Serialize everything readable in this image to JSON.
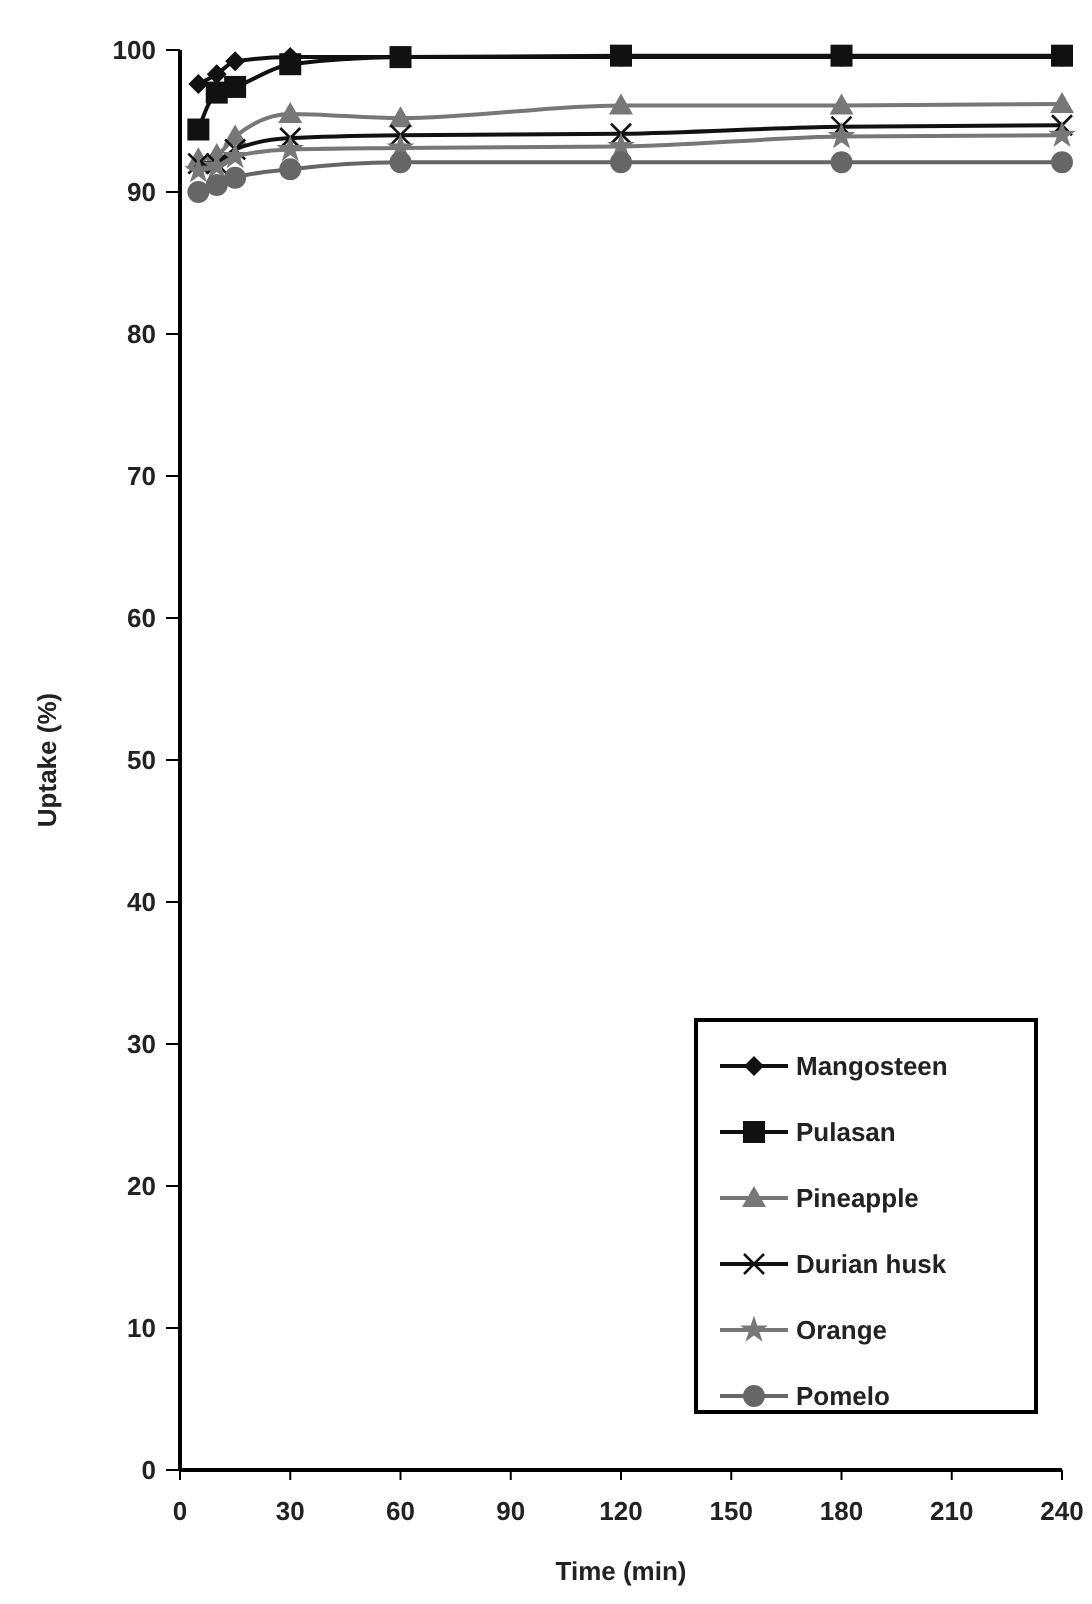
{
  "chart_data": {
    "type": "line",
    "xlabel": "Time (min)",
    "ylabel": "Uptake (%)",
    "x": [
      5,
      10,
      15,
      30,
      60,
      120,
      180,
      240
    ],
    "series": [
      {
        "name": "Mangosteen",
        "color": "#111111",
        "marker": "diamond",
        "values": [
          97.6,
          98.3,
          99.2,
          99.5,
          99.5,
          99.5,
          99.5,
          99.5
        ]
      },
      {
        "name": "Pulasan",
        "color": "#111111",
        "marker": "square",
        "values": [
          94.4,
          97,
          97.4,
          99,
          99.5,
          99.6,
          99.6,
          99.6
        ]
      },
      {
        "name": "Pineapple",
        "color": "#777777",
        "marker": "triangle",
        "values": [
          92.3,
          92.6,
          93.9,
          95.5,
          95.2,
          96.1,
          96.1,
          96.2
        ]
      },
      {
        "name": "Durian husk",
        "color": "#111111",
        "marker": "cross",
        "values": [
          92,
          92,
          93,
          93.8,
          94,
          94.1,
          94.6,
          94.7
        ]
      },
      {
        "name": "Orange",
        "color": "#777777",
        "marker": "star",
        "values": [
          91.5,
          91.8,
          92.5,
          93,
          93.1,
          93.2,
          93.9,
          94
        ]
      },
      {
        "name": "Pomelo",
        "color": "#666666",
        "marker": "circle",
        "values": [
          90,
          90.5,
          91,
          91.6,
          92.1,
          92.1,
          92.1,
          92.1
        ]
      }
    ],
    "xlim": [
      0,
      240
    ],
    "xticks": [
      0,
      30,
      60,
      90,
      120,
      150,
      180,
      210,
      240
    ],
    "ylim": [
      0,
      100
    ],
    "yticks": [
      0,
      10,
      20,
      30,
      40,
      50,
      60,
      70,
      80,
      90,
      100
    ],
    "grid": false,
    "legend": "bottom right",
    "line_style": "solid"
  }
}
